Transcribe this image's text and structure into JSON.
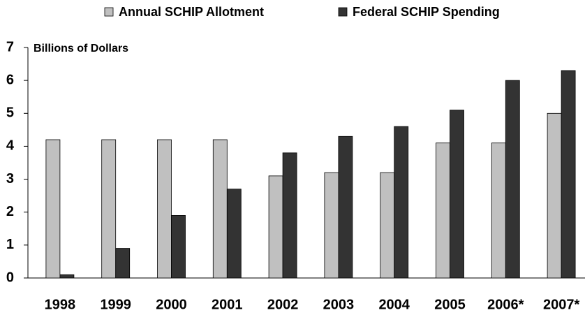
{
  "chart_data": {
    "type": "bar",
    "y_label": "Billions of Dollars",
    "categories": [
      "1998",
      "1999",
      "2000",
      "2001",
      "2002",
      "2003",
      "2004",
      "2005",
      "2006*",
      "2007*"
    ],
    "series": [
      {
        "name": "Annual SCHIP Allotment",
        "color": "#c0c0c0",
        "values": [
          4.2,
          4.2,
          4.2,
          4.2,
          3.1,
          3.2,
          3.2,
          4.1,
          4.1,
          5.0
        ]
      },
      {
        "name": "Federal SCHIP Spending",
        "color": "#333333",
        "values": [
          0.1,
          0.9,
          1.9,
          2.7,
          3.8,
          4.3,
          4.6,
          5.1,
          6.0,
          6.3
        ]
      }
    ],
    "ylim": [
      0,
      7
    ],
    "yticks": [
      0,
      1,
      2,
      3,
      4,
      5,
      6,
      7
    ],
    "grid": false,
    "legend": "top"
  }
}
